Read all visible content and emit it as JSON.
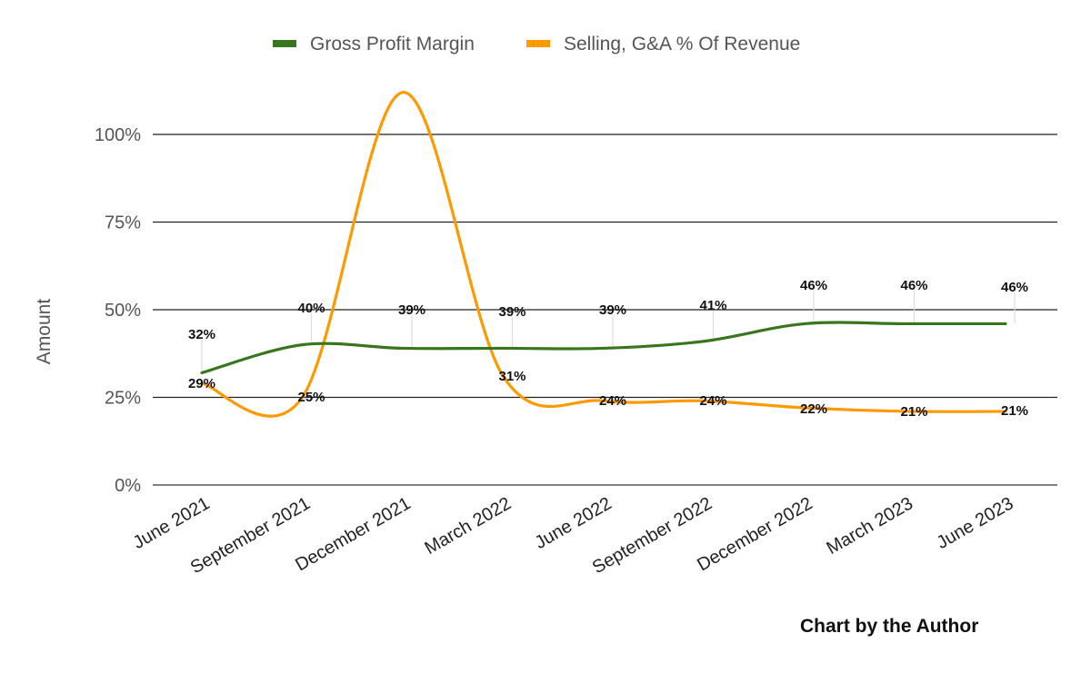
{
  "chart_data": {
    "type": "line",
    "title": "",
    "xlabel": "",
    "ylabel": "Amount",
    "ylim": [
      0,
      1.0
    ],
    "y_ticks": [
      0,
      0.25,
      0.5,
      0.75,
      1.0
    ],
    "y_tick_labels": [
      "0%",
      "25%",
      "50%",
      "75%",
      "100%"
    ],
    "grid": true,
    "legend": "top",
    "categories": [
      "June 2021",
      "September 2021",
      "December 2021",
      "March 2022",
      "June 2022",
      "September 2022",
      "December 2022",
      "March 2023",
      "June 2023"
    ],
    "series": [
      {
        "name": "Gross Profit Margin",
        "color": "#38761d",
        "values": [
          0.32,
          0.4,
          0.39,
          0.39,
          0.39,
          0.41,
          0.46,
          0.46,
          0.46
        ],
        "labels": [
          "32%",
          "40%",
          "39%",
          "39%",
          "39%",
          "41%",
          "46%",
          "46%",
          "46%"
        ]
      },
      {
        "name": "Selling, G&A % Of Revenue",
        "color": "#ff9900",
        "values": [
          0.29,
          0.25,
          1.12,
          0.31,
          0.24,
          0.24,
          0.22,
          0.21,
          0.21
        ],
        "labels": [
          "29%",
          "25%",
          "",
          "31%",
          "24%",
          "24%",
          "22%",
          "21%",
          "21%"
        ]
      }
    ]
  },
  "credit": "Chart by the Author"
}
